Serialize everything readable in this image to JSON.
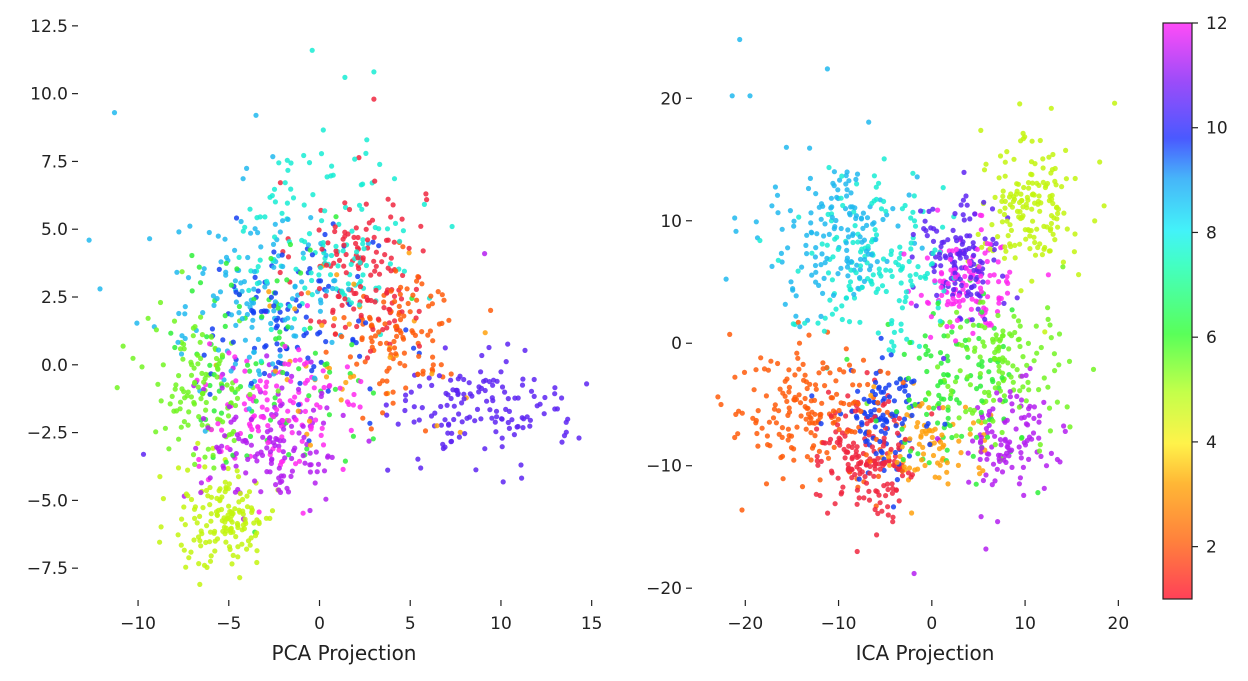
{
  "chart_data": [
    {
      "type": "scatter",
      "xlabel": "PCA Projection",
      "ylabel": "",
      "xlim": [
        -13.2,
        15.9
      ],
      "ylim": [
        -8.6,
        12.9
      ],
      "xticks": [
        -10,
        -5,
        0,
        5,
        10,
        15
      ],
      "xtick_labels": [
        "−10",
        "−5",
        "0",
        "5",
        "10",
        "15"
      ],
      "yticks": [
        -7.5,
        -5.0,
        -2.5,
        0.0,
        2.5,
        5.0,
        7.5,
        10.0,
        12.5
      ],
      "ytick_labels": [
        "−7.5",
        "−5.0",
        "−2.5",
        "0.0",
        "2.5",
        "5.0",
        "7.5",
        "10.0",
        "12.5"
      ],
      "grid": false,
      "color_by": "class label (1–12)",
      "clusters": [
        {
          "label": 1,
          "center": [
            2.2,
            3.6
          ],
          "spread": [
            1.8,
            1.6
          ],
          "count": 140
        },
        {
          "label": 2,
          "center": [
            4.6,
            1.0
          ],
          "spread": [
            1.5,
            1.3
          ],
          "count": 110
        },
        {
          "label": 3,
          "center": [
            1.5,
            0.6
          ],
          "spread": [
            3.0,
            1.8
          ],
          "count": 40
        },
        {
          "label": 4,
          "center": [
            -5.2,
            -5.7
          ],
          "spread": [
            1.4,
            1.0
          ],
          "count": 150
        },
        {
          "label": 5,
          "center": [
            -6.5,
            -0.8
          ],
          "spread": [
            1.6,
            1.4
          ],
          "count": 120
        },
        {
          "label": 6,
          "center": [
            -3.0,
            0.4
          ],
          "spread": [
            2.8,
            2.0
          ],
          "count": 90
        },
        {
          "label": 7,
          "center": [
            0.5,
            4.6
          ],
          "spread": [
            2.4,
            1.8
          ],
          "count": 130
        },
        {
          "label": 8,
          "center": [
            -3.6,
            2.6
          ],
          "spread": [
            2.8,
            1.8
          ],
          "count": 130
        },
        {
          "label": 9,
          "center": [
            -1.5,
            1.5
          ],
          "spread": [
            2.4,
            1.6
          ],
          "count": 100
        },
        {
          "label": 10,
          "center": [
            8.8,
            -1.6
          ],
          "spread": [
            2.3,
            1.0
          ],
          "count": 140
        },
        {
          "label": 11,
          "center": [
            -2.5,
            -2.8
          ],
          "spread": [
            2.0,
            1.2
          ],
          "count": 140
        },
        {
          "label": 12,
          "center": [
            -2.2,
            -1.8
          ],
          "spread": [
            2.3,
            1.2
          ],
          "count": 120
        }
      ],
      "outliers": [
        {
          "x": -11.3,
          "y": 9.3,
          "label": 8
        },
        {
          "x": -0.4,
          "y": 11.6,
          "label": 7
        },
        {
          "x": 1.4,
          "y": 10.6,
          "label": 7
        },
        {
          "x": 3.0,
          "y": 10.8,
          "label": 7
        },
        {
          "x": 3.0,
          "y": 9.8,
          "label": 1
        },
        {
          "x": -3.5,
          "y": 9.2,
          "label": 8
        },
        {
          "x": -12.7,
          "y": 4.6,
          "label": 8
        },
        {
          "x": -12.1,
          "y": 2.8,
          "label": 8
        },
        {
          "x": -9.7,
          "y": -3.3,
          "label": 10
        },
        {
          "x": 9.1,
          "y": 4.1,
          "label": 11
        },
        {
          "x": 14.3,
          "y": -2.7,
          "label": 10
        },
        {
          "x": -6.6,
          "y": -8.1,
          "label": 4
        }
      ]
    },
    {
      "type": "scatter",
      "xlabel": "ICA Projection",
      "ylabel": "",
      "xlim": [
        -25.5,
        22.0
      ],
      "ylim": [
        -20.8,
        26.8
      ],
      "xticks": [
        -20,
        -10,
        0,
        10,
        20
      ],
      "xtick_labels": [
        "−20",
        "−10",
        "0",
        "10",
        "20"
      ],
      "yticks": [
        -20,
        -10,
        0,
        10,
        20
      ],
      "ytick_labels": [
        "−20",
        "−10",
        "0",
        "10",
        "20"
      ],
      "grid": false,
      "color_by": "class label (1–12)",
      "clusters": [
        {
          "label": 1,
          "center": [
            -6.5,
            -9.5
          ],
          "spread": [
            2.5,
            2.5
          ],
          "count": 170
        },
        {
          "label": 2,
          "center": [
            -13.0,
            -5.0
          ],
          "spread": [
            3.6,
            2.8
          ],
          "count": 180
        },
        {
          "label": 3,
          "center": [
            0.0,
            -8.0
          ],
          "spread": [
            3.0,
            2.0
          ],
          "count": 80
        },
        {
          "label": 4,
          "center": [
            10.5,
            11.0
          ],
          "spread": [
            2.6,
            3.0
          ],
          "count": 160
        },
        {
          "label": 5,
          "center": [
            7.0,
            -2.0
          ],
          "spread": [
            3.6,
            3.0
          ],
          "count": 140
        },
        {
          "label": 6,
          "center": [
            2.0,
            -4.0
          ],
          "spread": [
            4.0,
            3.6
          ],
          "count": 110
        },
        {
          "label": 7,
          "center": [
            -6.0,
            6.5
          ],
          "spread": [
            4.0,
            3.5
          ],
          "count": 160
        },
        {
          "label": 8,
          "center": [
            -10.0,
            9.0
          ],
          "spread": [
            4.0,
            3.0
          ],
          "count": 150
        },
        {
          "label": 9,
          "center": [
            -5.0,
            -6.0
          ],
          "spread": [
            2.2,
            2.2
          ],
          "count": 110
        },
        {
          "label": 10,
          "center": [
            3.0,
            7.0
          ],
          "spread": [
            2.2,
            2.4
          ],
          "count": 130
        },
        {
          "label": 11,
          "center": [
            8.0,
            -8.0
          ],
          "spread": [
            2.6,
            2.2
          ],
          "count": 110
        },
        {
          "label": 12,
          "center": [
            4.0,
            5.0
          ],
          "spread": [
            2.4,
            2.4
          ],
          "count": 120
        }
      ],
      "outliers": [
        {
          "x": -20.6,
          "y": 24.8,
          "label": 8
        },
        {
          "x": -21.4,
          "y": 20.2,
          "label": 8
        },
        {
          "x": -19.5,
          "y": 20.2,
          "label": 8
        },
        {
          "x": -11.2,
          "y": 22.4,
          "label": 8
        },
        {
          "x": 19.6,
          "y": 19.6,
          "label": 4
        },
        {
          "x": -1.9,
          "y": -18.8,
          "label": 11
        },
        {
          "x": 5.8,
          "y": -16.8,
          "label": 11
        },
        {
          "x": -22.6,
          "y": -5.0,
          "label": 2
        },
        {
          "x": -8.0,
          "y": -17.0,
          "label": 1
        },
        {
          "x": 18.0,
          "y": 14.8,
          "label": 4
        }
      ]
    }
  ],
  "colorbar": {
    "min": 1,
    "max": 12,
    "ticks": [
      2,
      4,
      6,
      8,
      10,
      12
    ],
    "tick_labels": [
      "2",
      "4",
      "6",
      "8",
      "10",
      "12"
    ],
    "colormap": "gist_rainbow_r",
    "colors": {
      "1": "#f0273f",
      "2": "#ff5c0a",
      "3": "#ffa10d",
      "4": "#c3f50f",
      "5": "#72f522",
      "6": "#2ef03a",
      "7": "#17ecd3",
      "8": "#20b8ef",
      "9": "#1540f2",
      "10": "#5d24f2",
      "11": "#b41ef0",
      "12": "#ff29f0"
    }
  }
}
